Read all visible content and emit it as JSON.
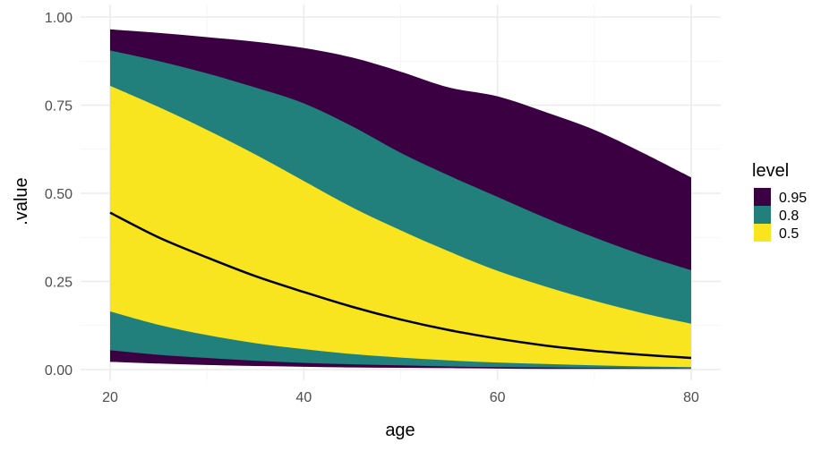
{
  "chart_data": {
    "type": "area",
    "xlabel": "age",
    "ylabel": ".value",
    "xlim": [
      20,
      80
    ],
    "ylim": [
      0,
      1
    ],
    "x_ticks": [
      20,
      40,
      60,
      80
    ],
    "x_tick_labels": [
      "20",
      "40",
      "60",
      "80"
    ],
    "y_ticks": [
      0,
      0.25,
      0.5,
      0.75,
      1
    ],
    "y_tick_labels": [
      "0.00",
      "0.25",
      "0.50",
      "0.75",
      "1.00"
    ],
    "grid": true,
    "legend": {
      "title": "level",
      "position": "right",
      "items": [
        {
          "label": "0.95",
          "color": "#3b0042"
        },
        {
          "label": "0.8",
          "color": "#21807c"
        },
        {
          "label": "0.5",
          "color": "#f9e420"
        }
      ]
    },
    "x": [
      20,
      25,
      30,
      35,
      40,
      45,
      50,
      55,
      60,
      65,
      70,
      75,
      80
    ],
    "bands": [
      {
        "level": "0.95",
        "color": "#3b0042",
        "upper": [
          0.965,
          0.955,
          0.943,
          0.93,
          0.912,
          0.885,
          0.845,
          0.8,
          0.775,
          0.73,
          0.68,
          0.615,
          0.545
        ],
        "lower": [
          0.022,
          0.017,
          0.013,
          0.01,
          0.008,
          0.006,
          0.005,
          0.004,
          0.003,
          0.002,
          0.002,
          0.002,
          0.002
        ]
      },
      {
        "level": "0.8",
        "color": "#21807c",
        "upper": [
          0.905,
          0.875,
          0.84,
          0.8,
          0.755,
          0.69,
          0.615,
          0.55,
          0.49,
          0.43,
          0.375,
          0.325,
          0.282
        ],
        "lower": [
          0.055,
          0.042,
          0.033,
          0.025,
          0.019,
          0.015,
          0.012,
          0.009,
          0.007,
          0.006,
          0.005,
          0.004,
          0.003
        ]
      },
      {
        "level": "0.5",
        "color": "#f9e420",
        "upper": [
          0.805,
          0.745,
          0.68,
          0.61,
          0.535,
          0.46,
          0.395,
          0.335,
          0.28,
          0.235,
          0.195,
          0.16,
          0.13
        ],
        "lower": [
          0.165,
          0.127,
          0.098,
          0.075,
          0.058,
          0.044,
          0.034,
          0.026,
          0.02,
          0.016,
          0.012,
          0.009,
          0.007
        ]
      }
    ],
    "line": {
      "name": "median",
      "color": "#000000",
      "values": [
        0.445,
        0.375,
        0.318,
        0.265,
        0.22,
        0.178,
        0.142,
        0.112,
        0.088,
        0.068,
        0.053,
        0.042,
        0.033
      ]
    }
  }
}
